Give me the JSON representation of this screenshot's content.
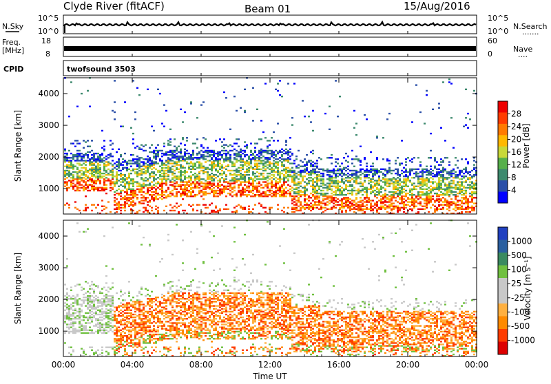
{
  "header": {
    "title": "Clyde River (fitACF)",
    "beam": "Beam 01",
    "date": "15/Aug/2016"
  },
  "strips": {
    "nsky": {
      "label": "N.Sky",
      "left_ticks": [
        "10^5",
        "10^0"
      ],
      "right_ticks": [
        "10^5",
        "10^0"
      ],
      "right_label": "N.Search",
      "right_dots": "·······"
    },
    "freq": {
      "label": "Freq.",
      "unit": "[MHz]",
      "left_ticks": [
        "18",
        "8"
      ],
      "right_ticks": [
        "60",
        "0"
      ],
      "right_label": "Nave",
      "right_dots": "····"
    },
    "cpid": {
      "label": "CPID",
      "value": "twofsound 3503"
    }
  },
  "colors": {
    "power_scale": [
      "#0000ff",
      "#2a4fa8",
      "#3d8a6e",
      "#56b04a",
      "#c8d838",
      "#ffb800",
      "#ff7a00",
      "#ff3c00",
      "#ee0000"
    ],
    "velocity_scale": [
      "#dd0000",
      "#ff3c00",
      "#ff8a00",
      "#ffb040",
      "#c8c8c8",
      "#c8c8c8",
      "#70c040",
      "#3a8a60",
      "#2a5fa0",
      "#2040c0"
    ]
  },
  "chart_data": [
    {
      "type": "heatmap",
      "panel": "power",
      "ylabel": "Slant Range [km]",
      "yticks": [
        "1000",
        "2000",
        "3000",
        "4000"
      ],
      "ylim": [
        200,
        4500
      ],
      "xticks": [
        "00:00",
        "04:00",
        "08:00",
        "12:00",
        "16:00",
        "20:00",
        "00:00"
      ],
      "colorbar": {
        "label": "Power [dB]",
        "ticks": [
          "28",
          "24",
          "20",
          "16",
          "12",
          "8",
          "4"
        ]
      }
    },
    {
      "type": "heatmap",
      "panel": "velocity",
      "ylabel": "Slant Range [km]",
      "yticks": [
        "1000",
        "2000",
        "3000",
        "4000"
      ],
      "ylim": [
        200,
        4500
      ],
      "xticks": [
        "00:00",
        "04:00",
        "08:00",
        "12:00",
        "16:00",
        "20:00",
        "00:00"
      ],
      "xlabel": "Time UT",
      "colorbar": {
        "label": "Velocity [m s⁻¹]",
        "ticks": [
          "1000",
          "500",
          "100",
          "25",
          "-25",
          "-100",
          "-500",
          "-1000"
        ]
      }
    }
  ]
}
